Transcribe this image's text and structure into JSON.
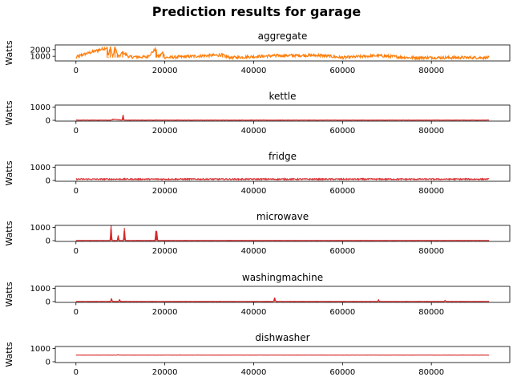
{
  "figure": {
    "title": "Prediction results for garage"
  },
  "chart_data": [
    {
      "type": "line",
      "title": "aggregate",
      "ylabel": "Watts",
      "xlim": [
        0,
        93000
      ],
      "ylim": [
        300,
        2700
      ],
      "xticks": [
        0,
        20000,
        40000,
        60000,
        80000
      ],
      "yticks": [
        1000,
        2000
      ],
      "color": "#ff7f0e",
      "baseline": 800,
      "noise": 220,
      "series": {
        "x": [
          0,
          800,
          7000,
          7300,
          7700,
          8300,
          8800,
          9300,
          9700,
          10500,
          12000,
          16000,
          18000,
          18200,
          18600,
          19600,
          20000,
          33000,
          33500,
          35000,
          45000,
          55000,
          60000,
          68000,
          75000,
          82000,
          93000
        ],
        "y": [
          800,
          1100,
          2300,
          900,
          2500,
          850,
          2450,
          1300,
          900,
          1600,
          900,
          900,
          2100,
          1200,
          900,
          1600,
          800,
          1200,
          1000,
          800,
          1100,
          1150,
          800,
          1100,
          800,
          800,
          800
        ]
      }
    },
    {
      "type": "line",
      "title": "kettle",
      "ylabel": "Watts",
      "xlim": [
        0,
        93000
      ],
      "ylim": [
        -60,
        1150
      ],
      "xticks": [
        0,
        20000,
        40000,
        60000,
        80000
      ],
      "yticks": [
        0,
        1000
      ],
      "color": "#d62728",
      "baseline": 15,
      "noise": 10,
      "series": {
        "x": [
          0,
          8000,
          8300,
          10400,
          10600,
          10800,
          93000
        ],
        "y": [
          15,
          15,
          90,
          15,
          420,
          15,
          15
        ]
      }
    },
    {
      "type": "line",
      "title": "fridge",
      "ylabel": "Watts",
      "xlim": [
        0,
        93000
      ],
      "ylim": [
        -60,
        1150
      ],
      "xticks": [
        0,
        20000,
        40000,
        60000,
        80000
      ],
      "yticks": [
        0,
        1000
      ],
      "color": "#d62728",
      "baseline": 100,
      "noise": 45,
      "series": {
        "x": [
          0,
          93000
        ],
        "y": [
          100,
          100
        ]
      }
    },
    {
      "type": "line",
      "title": "microwave",
      "ylabel": "Watts",
      "xlim": [
        0,
        93000
      ],
      "ylim": [
        -60,
        1150
      ],
      "xticks": [
        0,
        20000,
        40000,
        60000,
        80000
      ],
      "yticks": [
        0,
        1000
      ],
      "color": "#d62728",
      "baseline": 10,
      "noise": 8,
      "series": {
        "x": [
          0,
          7700,
          7900,
          8100,
          9300,
          9500,
          9700,
          10700,
          10900,
          11100,
          17800,
          18000,
          18200,
          18400,
          93000
        ],
        "y": [
          10,
          10,
          1150,
          10,
          10,
          400,
          10,
          10,
          950,
          10,
          10,
          750,
          650,
          10,
          10
        ]
      }
    },
    {
      "type": "line",
      "title": "washingmachine",
      "ylabel": "Watts",
      "xlim": [
        0,
        93000
      ],
      "ylim": [
        -60,
        1150
      ],
      "xticks": [
        0,
        20000,
        40000,
        60000,
        80000
      ],
      "yticks": [
        0,
        1000
      ],
      "color": "#d62728",
      "baseline": 10,
      "noise": 8,
      "series": {
        "x": [
          0,
          7800,
          8000,
          8200,
          9600,
          9800,
          10000,
          44500,
          44700,
          45000,
          67900,
          68100,
          68300,
          82900,
          83100,
          83300,
          93000
        ],
        "y": [
          10,
          10,
          250,
          10,
          10,
          150,
          10,
          10,
          300,
          10,
          10,
          130,
          10,
          10,
          100,
          10,
          10
        ]
      }
    },
    {
      "type": "line",
      "title": "dishwasher",
      "ylabel": "Watts",
      "xlim": [
        0,
        93000
      ],
      "ylim": [
        -60,
        1150
      ],
      "xticks": [
        0,
        20000,
        40000,
        60000,
        80000
      ],
      "yticks": [
        0,
        1000
      ],
      "color": "#d62728",
      "baseline": 500,
      "noise": 6,
      "series": {
        "x": [
          0,
          9300,
          9500,
          9700,
          93000
        ],
        "y": [
          500,
          500,
          540,
          500,
          500
        ]
      }
    }
  ]
}
